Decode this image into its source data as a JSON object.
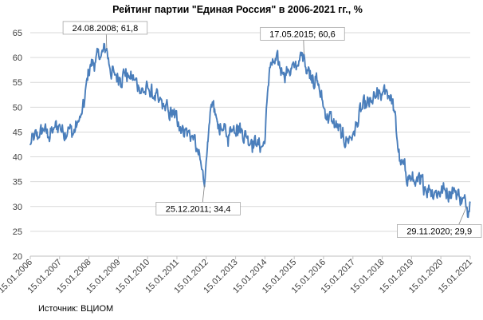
{
  "chart_data": {
    "type": "line",
    "title": "Рейтинг партии \"Единая Россия\" в 2006-2021 гг., %",
    "xlabel": "",
    "ylabel": "",
    "ylim": [
      20,
      65
    ],
    "yticks": [
      20,
      25,
      30,
      35,
      40,
      45,
      50,
      55,
      60,
      65
    ],
    "xlim": [
      "2006-01-15",
      "2021-01-15"
    ],
    "xticks": [
      "15.01.2006",
      "15.01.2007",
      "15.01.2008",
      "15.01.2009",
      "15.01.2010",
      "15.01.2011",
      "15.01.2012",
      "15.01.2013",
      "15.01.2014",
      "15.01.2015",
      "15.01.2016",
      "15.01.2017",
      "15.01.2018",
      "15.01.2019",
      "15.01.2020",
      "15.01.2021"
    ],
    "grid": true,
    "legend": "none",
    "line_color": "#4a7ebb",
    "series": [
      {
        "x": [
          "2006-01-15",
          "2006-03-01",
          "2006-05-01",
          "2006-07-01",
          "2006-09-01",
          "2006-11-01",
          "2007-01-15",
          "2007-03-01",
          "2007-05-01",
          "2007-07-01",
          "2007-09-01",
          "2007-10-15",
          "2007-11-15",
          "2007-12-15",
          "2008-02-01",
          "2008-04-01",
          "2008-06-01",
          "2008-08-24",
          "2008-10-01",
          "2008-12-01",
          "2009-02-01",
          "2009-04-01",
          "2009-06-01",
          "2009-08-01",
          "2009-10-01",
          "2009-12-01",
          "2010-02-01",
          "2010-04-01",
          "2010-06-01",
          "2010-08-01",
          "2010-10-01",
          "2010-12-01",
          "2011-02-01",
          "2011-04-01",
          "2011-06-01",
          "2011-08-01",
          "2011-10-01",
          "2011-12-25",
          "2012-02-01",
          "2012-04-01",
          "2012-06-01",
          "2012-08-01",
          "2012-10-01",
          "2012-12-01",
          "2013-02-01",
          "2013-04-01",
          "2013-06-01",
          "2013-08-01",
          "2013-10-01",
          "2013-12-01",
          "2014-01-15",
          "2014-02-15",
          "2014-03-15",
          "2014-05-01",
          "2014-07-01",
          "2014-09-01",
          "2014-11-01",
          "2015-01-15",
          "2015-03-01",
          "2015-05-17",
          "2015-07-01",
          "2015-09-01",
          "2015-11-01",
          "2016-01-15",
          "2016-03-01",
          "2016-05-01",
          "2016-07-01",
          "2016-09-01",
          "2016-11-01",
          "2017-01-15",
          "2017-03-01",
          "2017-05-01",
          "2017-07-01",
          "2017-09-01",
          "2017-11-01",
          "2018-01-15",
          "2018-03-01",
          "2018-05-01",
          "2018-06-15",
          "2018-07-15",
          "2018-09-01",
          "2018-11-01",
          "2019-01-15",
          "2019-03-01",
          "2019-05-01",
          "2019-07-01",
          "2019-09-01",
          "2019-11-01",
          "2020-01-15",
          "2020-03-01",
          "2020-05-01",
          "2020-07-01",
          "2020-09-01",
          "2020-11-29",
          "2021-01-15"
        ],
        "values": [
          42.5,
          43.5,
          44.0,
          45.5,
          44.0,
          45.5,
          46.5,
          45.0,
          46.0,
          44.5,
          47.0,
          48.5,
          50.0,
          55.0,
          58.5,
          59.0,
          60.0,
          61.8,
          58.0,
          56.5,
          56.0,
          57.0,
          56.0,
          55.5,
          54.0,
          53.0,
          53.5,
          52.0,
          51.0,
          50.5,
          49.0,
          48.5,
          47.0,
          46.0,
          45.0,
          44.0,
          41.0,
          34.4,
          43.0,
          50.5,
          47.0,
          45.5,
          44.0,
          45.5,
          46.5,
          45.5,
          44.0,
          43.5,
          42.5,
          42.0,
          43.0,
          52.5,
          58.0,
          59.0,
          58.5,
          57.0,
          57.5,
          58.0,
          58.5,
          60.6,
          57.5,
          56.5,
          55.0,
          50.0,
          48.5,
          47.0,
          46.0,
          44.0,
          43.5,
          44.5,
          46.5,
          49.5,
          50.0,
          51.0,
          52.0,
          52.5,
          53.5,
          52.5,
          49.0,
          44.0,
          38.5,
          37.0,
          35.5,
          34.5,
          34.5,
          34.0,
          33.5,
          33.0,
          33.0,
          33.5,
          33.0,
          33.5,
          32.0,
          29.9,
          31.0
        ],
        "wiggle": 1.6
      }
    ],
    "annotations": [
      {
        "label": "24.08.2008; 61,8",
        "x": "2008-08-24",
        "y": 61.8
      },
      {
        "label": "25.12.2011; 34,4",
        "x": "2011-12-25",
        "y": 34.4
      },
      {
        "label": "17.05.2015; 60,6",
        "x": "2015-05-17",
        "y": 60.6
      },
      {
        "label": "29.11.2020; 29,9",
        "x": "2020-11-29",
        "y": 29.9
      }
    ]
  },
  "source_text": "Источник: ВЦИОМ"
}
